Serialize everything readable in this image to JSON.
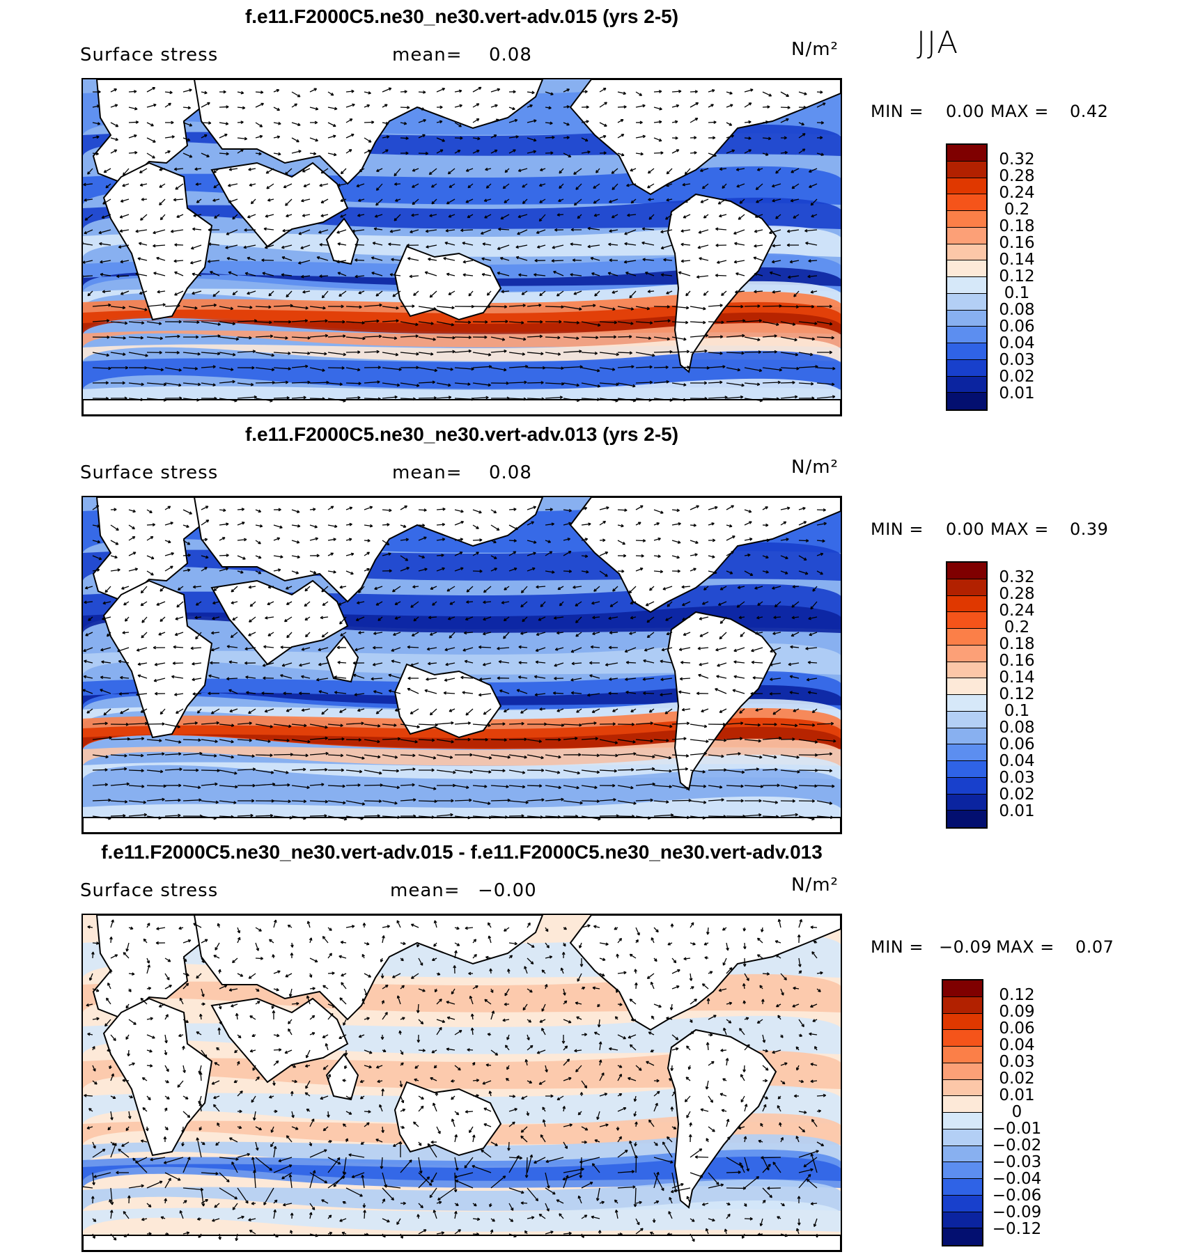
{
  "season_label": "JJA",
  "panels": [
    {
      "title": "f.e11.F2000C5.ne30_ne30.vert-adv.015 (yrs 2-5)",
      "variable": "Surface stress",
      "mean_label": "mean=",
      "mean_value": "0.08",
      "units": "N/m²",
      "min_label": "MIN =",
      "min_value": "0.00",
      "max_label": "MAX =",
      "max_value": "0.42",
      "colorbar": {
        "levels": [
          "0.32",
          "0.28",
          "0.24",
          "0.2",
          "0.18",
          "0.16",
          "0.14",
          "0.12",
          "0.1",
          "0.08",
          "0.06",
          "0.04",
          "0.03",
          "0.02",
          "0.01"
        ],
        "colors": [
          "#7f0000",
          "#b22100",
          "#e03800",
          "#f5541a",
          "#fb7f48",
          "#fca077",
          "#fcc7a8",
          "#fde9d8",
          "#d6e8f9",
          "#b3cff5",
          "#88b0f0",
          "#5c8ef0",
          "#2f63e6",
          "#1840cc",
          "#0b24a0",
          "#030f70"
        ]
      }
    },
    {
      "title": "f.e11.F2000C5.ne30_ne30.vert-adv.013 (yrs 2-5)",
      "variable": "Surface stress",
      "mean_label": "mean=",
      "mean_value": "0.08",
      "units": "N/m²",
      "min_label": "MIN =",
      "min_value": "0.00",
      "max_label": "MAX =",
      "max_value": "0.39",
      "colorbar": {
        "levels": [
          "0.32",
          "0.28",
          "0.24",
          "0.2",
          "0.18",
          "0.16",
          "0.14",
          "0.12",
          "0.1",
          "0.08",
          "0.06",
          "0.04",
          "0.03",
          "0.02",
          "0.01"
        ],
        "colors": [
          "#7f0000",
          "#b22100",
          "#e03800",
          "#f5541a",
          "#fb7f48",
          "#fca077",
          "#fcc7a8",
          "#fde9d8",
          "#d6e8f9",
          "#b3cff5",
          "#88b0f0",
          "#5c8ef0",
          "#2f63e6",
          "#1840cc",
          "#0b24a0",
          "#030f70"
        ]
      }
    },
    {
      "title": "f.e11.F2000C5.ne30_ne30.vert-adv.015 - f.e11.F2000C5.ne30_ne30.vert-adv.013",
      "variable": "Surface stress",
      "mean_label": "mean=",
      "mean_value": "−0.00",
      "units": "N/m²",
      "min_label": "MIN =",
      "min_value": "−0.09",
      "max_label": "MAX =",
      "max_value": "0.07",
      "colorbar": {
        "levels": [
          "0.12",
          "0.09",
          "0.06",
          "0.04",
          "0.03",
          "0.02",
          "0.01",
          "0",
          "−0.01",
          "−0.02",
          "−0.03",
          "−0.04",
          "−0.06",
          "−0.09",
          "−0.12"
        ],
        "colors": [
          "#7f0000",
          "#b22100",
          "#e03800",
          "#f5541a",
          "#fb7f48",
          "#fca077",
          "#fcc7a8",
          "#fde9d8",
          "#d6e8f9",
          "#b3cff5",
          "#88b0f0",
          "#5c8ef0",
          "#2f63e6",
          "#1840cc",
          "#0b24a0",
          "#030f70"
        ]
      }
    }
  ]
}
